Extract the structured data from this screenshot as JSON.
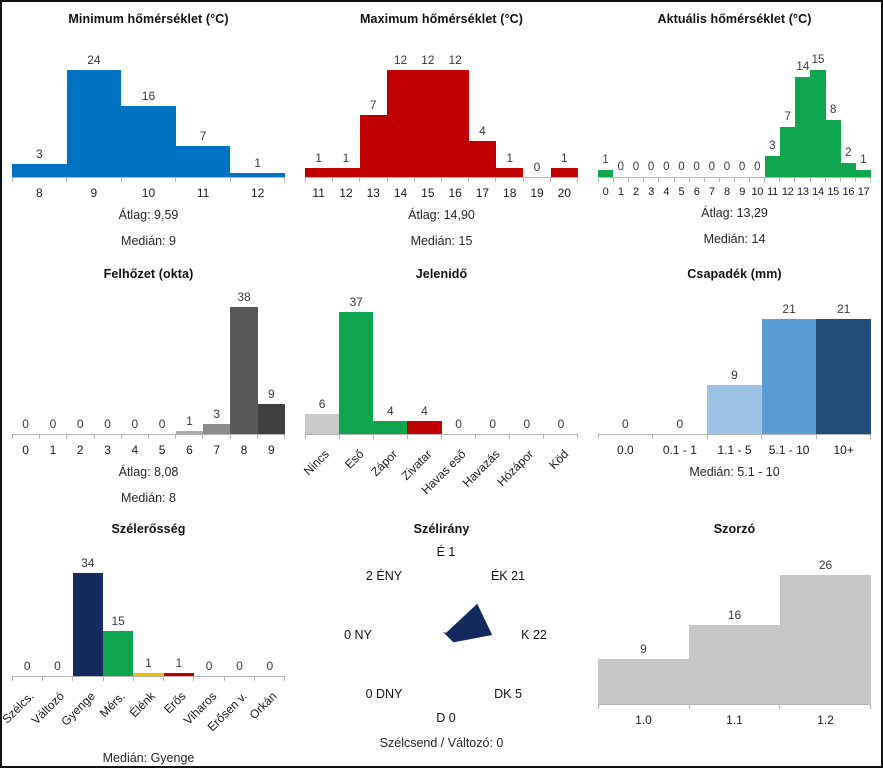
{
  "page": {
    "background": "#ffffff",
    "border_color": "#111111",
    "axis_color": "#b4b4b4",
    "text_color": "#1a1a1a"
  },
  "chart_data": [
    {
      "id": "minimum-temperature",
      "type": "bar",
      "title": "Minimum hőmérséklet (°C)",
      "categories": [
        "8",
        "9",
        "10",
        "11",
        "12"
      ],
      "values": [
        3,
        24,
        16,
        7,
        1
      ],
      "colors": "#0072C2",
      "ylim": [
        0,
        24
      ],
      "grid": false,
      "stats": [
        "Átlag: 9,59",
        "Medián: 9"
      ]
    },
    {
      "id": "maximum-temperature",
      "type": "bar",
      "title": "Maximum hőmérséklet (°C)",
      "categories": [
        "11",
        "12",
        "13",
        "14",
        "15",
        "16",
        "17",
        "18",
        "19",
        "20"
      ],
      "values": [
        1,
        1,
        7,
        12,
        12,
        12,
        4,
        1,
        0,
        1
      ],
      "colors": "#C00000",
      "ylim": [
        0,
        12
      ],
      "grid": false,
      "stats": [
        "Átlag: 14,90",
        "Medián: 15"
      ]
    },
    {
      "id": "current-temperature",
      "type": "bar",
      "title": "Aktuális hőmérséklet (°C)",
      "categories": [
        "0",
        "1",
        "2",
        "3",
        "4",
        "5",
        "6",
        "7",
        "8",
        "9",
        "10",
        "11",
        "12",
        "13",
        "14",
        "15",
        "16",
        "17"
      ],
      "values": [
        1,
        0,
        0,
        0,
        0,
        0,
        0,
        0,
        0,
        0,
        0,
        3,
        7,
        14,
        15,
        8,
        2,
        1
      ],
      "colors": "#10A64F",
      "ylim": [
        0,
        15
      ],
      "grid": false,
      "stats": [
        "Átlag: 13,29",
        "Medián: 14"
      ]
    },
    {
      "id": "cloud-cover",
      "type": "bar",
      "title": "Felhőzet (okta)",
      "categories": [
        "0",
        "1",
        "2",
        "3",
        "4",
        "5",
        "6",
        "7",
        "8",
        "9"
      ],
      "values": [
        0,
        0,
        0,
        0,
        0,
        0,
        1,
        3,
        38,
        9
      ],
      "colors": [
        "",
        "",
        "",
        "",
        "",
        "",
        "#ADADAD",
        "#8C8C8C",
        "#595959",
        "#3F3F3F"
      ],
      "ylim": [
        0,
        38
      ],
      "grid": false,
      "stats": [
        "Átlag: 8,08",
        "Medián: 8"
      ]
    },
    {
      "id": "present-weather",
      "type": "bar",
      "title": "Jelenidő",
      "categories": [
        "Nincs",
        "Eső",
        "Zápor",
        "Zivatar",
        "Havas eső",
        "Havazás",
        "Hózápor",
        "Köd"
      ],
      "values": [
        6,
        37,
        4,
        4,
        0,
        0,
        0,
        0
      ],
      "colors": [
        "#C8C8C8",
        "#10A64F",
        "#10A64F",
        "#C00000",
        "",
        "",
        "",
        ""
      ],
      "rotated_labels": true,
      "ylim": [
        0,
        37
      ],
      "grid": false,
      "stats": []
    },
    {
      "id": "precipitation",
      "type": "bar",
      "title": "Csapadék (mm)",
      "categories": [
        "0.0",
        "0.1 - 1",
        "1.1 - 5",
        "5.1 - 10",
        "10+"
      ],
      "values": [
        0,
        0,
        9,
        21,
        21
      ],
      "colors": [
        "",
        "",
        "#9DC3E6",
        "#5B9BD5",
        "#1F4E79"
      ],
      "ylim": [
        0,
        21
      ],
      "grid": false,
      "stats": [
        "Medián: 5.1 - 10"
      ]
    },
    {
      "id": "wind-strength",
      "type": "bar",
      "title": "Szélerősség",
      "categories": [
        "Szélcs.",
        "Változó",
        "Gyenge",
        "Mérs.",
        "Élénk",
        "Erős",
        "Viharos",
        "Erősen v.",
        "Orkán"
      ],
      "values": [
        0,
        0,
        34,
        15,
        1,
        1,
        0,
        0,
        0
      ],
      "colors": [
        "",
        "",
        "#14295E",
        "#10A64F",
        "#F0C000",
        "#C00000",
        "",
        "",
        ""
      ],
      "rotated_labels": true,
      "ylim": [
        0,
        34
      ],
      "grid": false,
      "stats": [
        "Medián: Gyenge"
      ]
    },
    {
      "id": "wind-direction",
      "type": "radar",
      "title": "Szélirány",
      "fill_color": "#14295E",
      "directions": [
        {
          "dir": "É",
          "value": 1,
          "label": "É 1",
          "angle": 90
        },
        {
          "dir": "ÉK",
          "value": 21,
          "label": "ÉK 21",
          "angle": 45
        },
        {
          "dir": "K",
          "value": 22,
          "label": "K 22",
          "angle": 0
        },
        {
          "dir": "DK",
          "value": 5,
          "label": "DK 5",
          "angle": -45
        },
        {
          "dir": "D",
          "value": 0,
          "label": "D 0",
          "angle": -90
        },
        {
          "dir": "DNY",
          "value": 0,
          "label": "0 DNY",
          "angle": -135
        },
        {
          "dir": "NY",
          "value": 0,
          "label": "0 NY",
          "angle": 180
        },
        {
          "dir": "ÉNY",
          "value": 2,
          "label": "2 ÉNY",
          "angle": 135
        }
      ],
      "footer": "Szélcsend / Változó: 0"
    },
    {
      "id": "multiplier",
      "type": "bar",
      "title": "Szorzó",
      "categories": [
        "1.0",
        "1.1",
        "1.2"
      ],
      "values": [
        9,
        16,
        26
      ],
      "colors": "#C6C6C6",
      "ylim": [
        0,
        26
      ],
      "grid": false,
      "stats": []
    }
  ]
}
